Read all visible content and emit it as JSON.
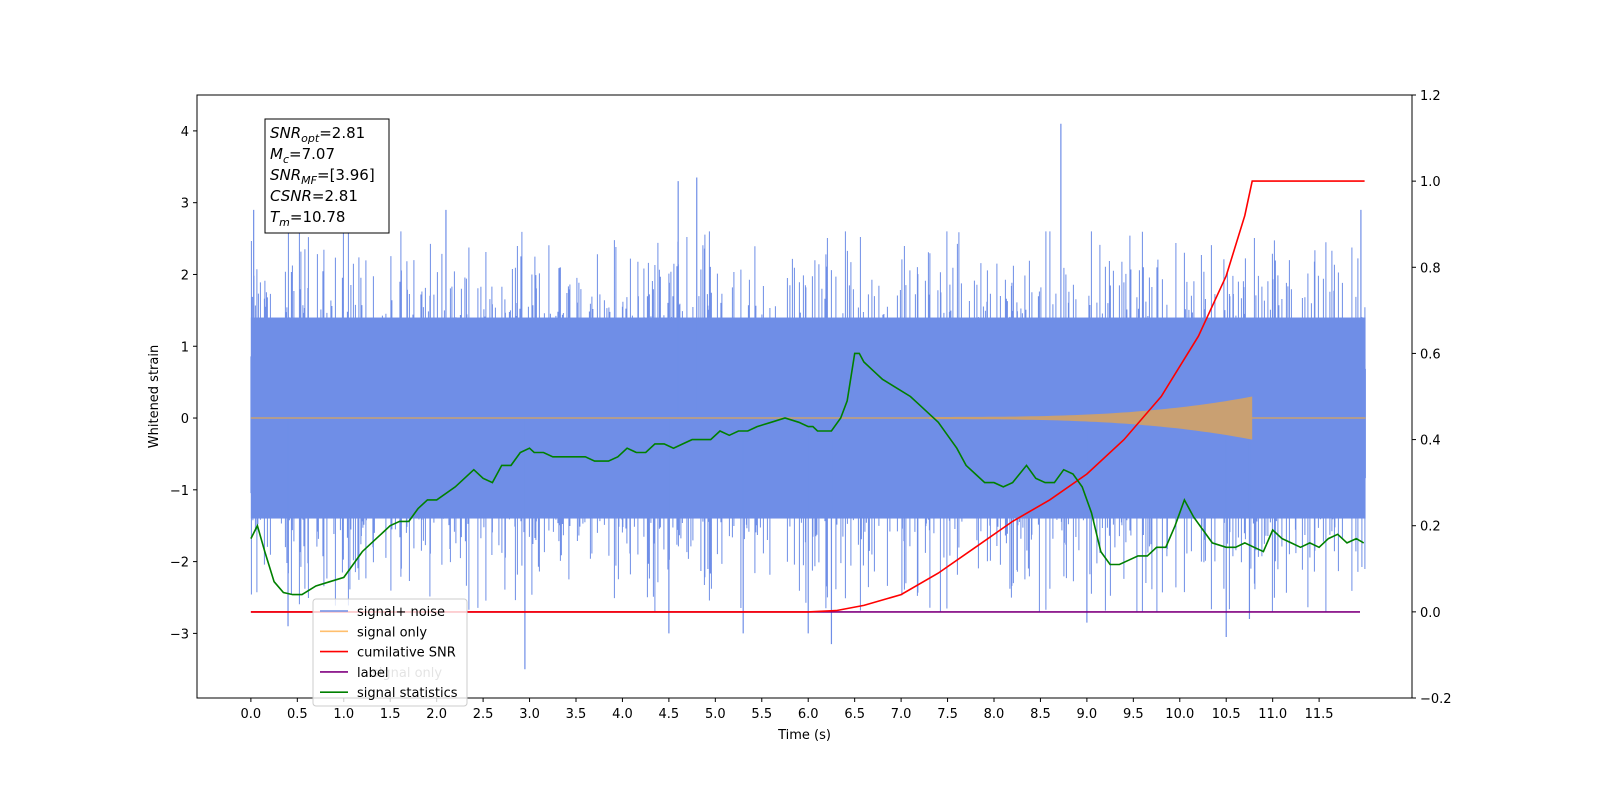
{
  "chart_data": {
    "type": "line",
    "xlabel": "Time (s)",
    "ylabel": "Whitened strain",
    "xlim": [
      -0.58,
      12.5
    ],
    "ylim": [
      -3.9,
      4.5
    ],
    "ylim_right": [
      -0.2,
      1.2
    ],
    "x_ticks": [
      0.0,
      0.5,
      1.0,
      1.5,
      2.0,
      2.5,
      3.0,
      3.5,
      4.0,
      4.5,
      5.0,
      5.5,
      6.0,
      6.5,
      7.0,
      7.5,
      8.0,
      8.5,
      9.0,
      9.5,
      10.0,
      10.5,
      11.0,
      11.5
    ],
    "x_tick_labels": [
      "0.0",
      "0.5",
      "1.0",
      "1.5",
      "2.0",
      "2.5",
      "3.0",
      "3.5",
      "4.0",
      "4.5",
      "5.0",
      "5.5",
      "6.0",
      "6.5",
      "7.0",
      "7.5",
      "8.0",
      "8.5",
      "9.0",
      "9.5",
      "10.0",
      "10.5",
      "11.0",
      "11.5"
    ],
    "y_ticks": [
      -3,
      -2,
      -1,
      0,
      1,
      2,
      3,
      4
    ],
    "y_tick_labels": [
      "−3",
      "−2",
      "−1",
      "0",
      "1",
      "2",
      "3",
      "4"
    ],
    "y_right_ticks": [
      -0.2,
      0.0,
      0.2,
      0.4,
      0.6,
      0.8,
      1.0,
      1.2
    ],
    "y_right_tick_labels": [
      "−0.2",
      "0.0",
      "0.2",
      "0.4",
      "0.6",
      "0.8",
      "1.0",
      "1.2"
    ],
    "grid": false,
    "legend_position": "bottom-left",
    "noise": {
      "x_start": 0.0,
      "x_end": 12.0,
      "band_min": -1.4,
      "band_max": 1.4,
      "spikes": [
        {
          "x": 0.03,
          "y": 2.9
        },
        {
          "x": 0.4,
          "y": -2.9
        },
        {
          "x": 2.1,
          "y": 2.9
        },
        {
          "x": 2.95,
          "y": -3.5
        },
        {
          "x": 4.6,
          "y": 3.3
        },
        {
          "x": 4.8,
          "y": 3.35
        },
        {
          "x": 4.5,
          "y": -3.0
        },
        {
          "x": 5.3,
          "y": -3.0
        },
        {
          "x": 6.0,
          "y": -3.0
        },
        {
          "x": 6.25,
          "y": -3.15
        },
        {
          "x": 8.72,
          "y": 4.1
        },
        {
          "x": 9.0,
          "y": -2.85
        },
        {
          "x": 10.5,
          "y": -3.05
        },
        {
          "x": 10.75,
          "y": -2.8
        },
        {
          "x": 11.95,
          "y": 2.9
        }
      ]
    },
    "signal_only": {
      "x_merge": 7.3,
      "x_peak": 10.78,
      "peak_amp": 0.3
    },
    "series": [
      {
        "name": "cumilative SNR",
        "axis": "right",
        "x": [
          0.0,
          6.0,
          6.3,
          6.6,
          7.0,
          7.4,
          7.8,
          8.2,
          8.6,
          9.0,
          9.4,
          9.8,
          10.2,
          10.5,
          10.7,
          10.78,
          11.0,
          11.5,
          11.99
        ],
        "y": [
          0.0,
          0.0,
          0.003,
          0.015,
          0.04,
          0.09,
          0.15,
          0.21,
          0.26,
          0.32,
          0.4,
          0.5,
          0.64,
          0.78,
          0.92,
          1.0,
          1.0,
          1.0,
          1.0
        ]
      },
      {
        "name": "label",
        "axis": "right",
        "x": [
          0.0,
          11.94
        ],
        "y": [
          0.0,
          0.0
        ]
      },
      {
        "name": "signal statistics",
        "axis": "right",
        "x": [
          0.0,
          0.07,
          0.15,
          0.25,
          0.35,
          0.45,
          0.55,
          0.7,
          0.85,
          1.0,
          1.1,
          1.2,
          1.35,
          1.5,
          1.6,
          1.7,
          1.8,
          1.9,
          2.0,
          2.2,
          2.4,
          2.5,
          2.6,
          2.7,
          2.8,
          2.9,
          3.0,
          3.05,
          3.15,
          3.25,
          3.35,
          3.5,
          3.6,
          3.7,
          3.85,
          3.95,
          4.05,
          4.15,
          4.25,
          4.35,
          4.45,
          4.55,
          4.65,
          4.75,
          4.85,
          4.95,
          5.05,
          5.15,
          5.25,
          5.35,
          5.45,
          5.6,
          5.75,
          5.9,
          6.0,
          6.05,
          6.1,
          6.25,
          6.35,
          6.42,
          6.5,
          6.55,
          6.6,
          6.7,
          6.8,
          6.95,
          7.1,
          7.2,
          7.3,
          7.4,
          7.5,
          7.6,
          7.7,
          7.8,
          7.9,
          8.0,
          8.1,
          8.2,
          8.35,
          8.45,
          8.55,
          8.65,
          8.75,
          8.85,
          8.95,
          9.05,
          9.15,
          9.25,
          9.35,
          9.45,
          9.55,
          9.65,
          9.75,
          9.85,
          9.95,
          10.05,
          10.15,
          10.25,
          10.35,
          10.5,
          10.6,
          10.7,
          10.8,
          10.9,
          11.0,
          11.1,
          11.2,
          11.3,
          11.4,
          11.5,
          11.6,
          11.7,
          11.8,
          11.9,
          11.98
        ],
        "y": [
          0.17,
          0.2,
          0.14,
          0.07,
          0.045,
          0.04,
          0.04,
          0.06,
          0.07,
          0.08,
          0.11,
          0.14,
          0.17,
          0.2,
          0.21,
          0.21,
          0.24,
          0.26,
          0.26,
          0.29,
          0.33,
          0.31,
          0.3,
          0.34,
          0.34,
          0.37,
          0.38,
          0.37,
          0.37,
          0.36,
          0.36,
          0.36,
          0.36,
          0.35,
          0.35,
          0.36,
          0.38,
          0.37,
          0.37,
          0.39,
          0.39,
          0.38,
          0.39,
          0.4,
          0.4,
          0.4,
          0.42,
          0.41,
          0.42,
          0.42,
          0.43,
          0.44,
          0.45,
          0.44,
          0.43,
          0.43,
          0.42,
          0.42,
          0.45,
          0.49,
          0.6,
          0.6,
          0.58,
          0.56,
          0.54,
          0.52,
          0.5,
          0.48,
          0.46,
          0.44,
          0.41,
          0.38,
          0.34,
          0.32,
          0.3,
          0.3,
          0.29,
          0.3,
          0.34,
          0.31,
          0.3,
          0.3,
          0.33,
          0.32,
          0.29,
          0.23,
          0.14,
          0.11,
          0.11,
          0.12,
          0.13,
          0.13,
          0.15,
          0.15,
          0.2,
          0.26,
          0.22,
          0.19,
          0.16,
          0.15,
          0.15,
          0.16,
          0.15,
          0.14,
          0.19,
          0.17,
          0.16,
          0.15,
          0.16,
          0.15,
          0.17,
          0.18,
          0.16,
          0.17,
          0.16
        ]
      }
    ],
    "legend": [
      {
        "label": "signal+ noise",
        "color": "#6f8ee7"
      },
      {
        "label": "signal only",
        "color": "#ffbf6e"
      },
      {
        "label": "cumilative SNR",
        "color": "#ff0000"
      },
      {
        "label": "label",
        "color": "#800080"
      },
      {
        "label": "signal statistics",
        "color": "#008000"
      }
    ],
    "legend_hidden_text": "signal only",
    "annotations": [
      {
        "base": "SNR",
        "sub": "opt",
        "rest": "=2.81"
      },
      {
        "base": "M",
        "sub": "c",
        "rest": "=7.07"
      },
      {
        "base": "SNR",
        "sub": "MF",
        "rest": "=[3.96]"
      },
      {
        "base": "CSNR",
        "sub": "",
        "rest": "=2.81"
      },
      {
        "base": "T",
        "sub": "m",
        "rest": "=10.78"
      }
    ],
    "colors": {
      "noise": "#6f8ee7",
      "signal": "#c9a072",
      "cumulative_snr": "#ff0000",
      "label": "#800080",
      "statistics": "#008000"
    }
  }
}
